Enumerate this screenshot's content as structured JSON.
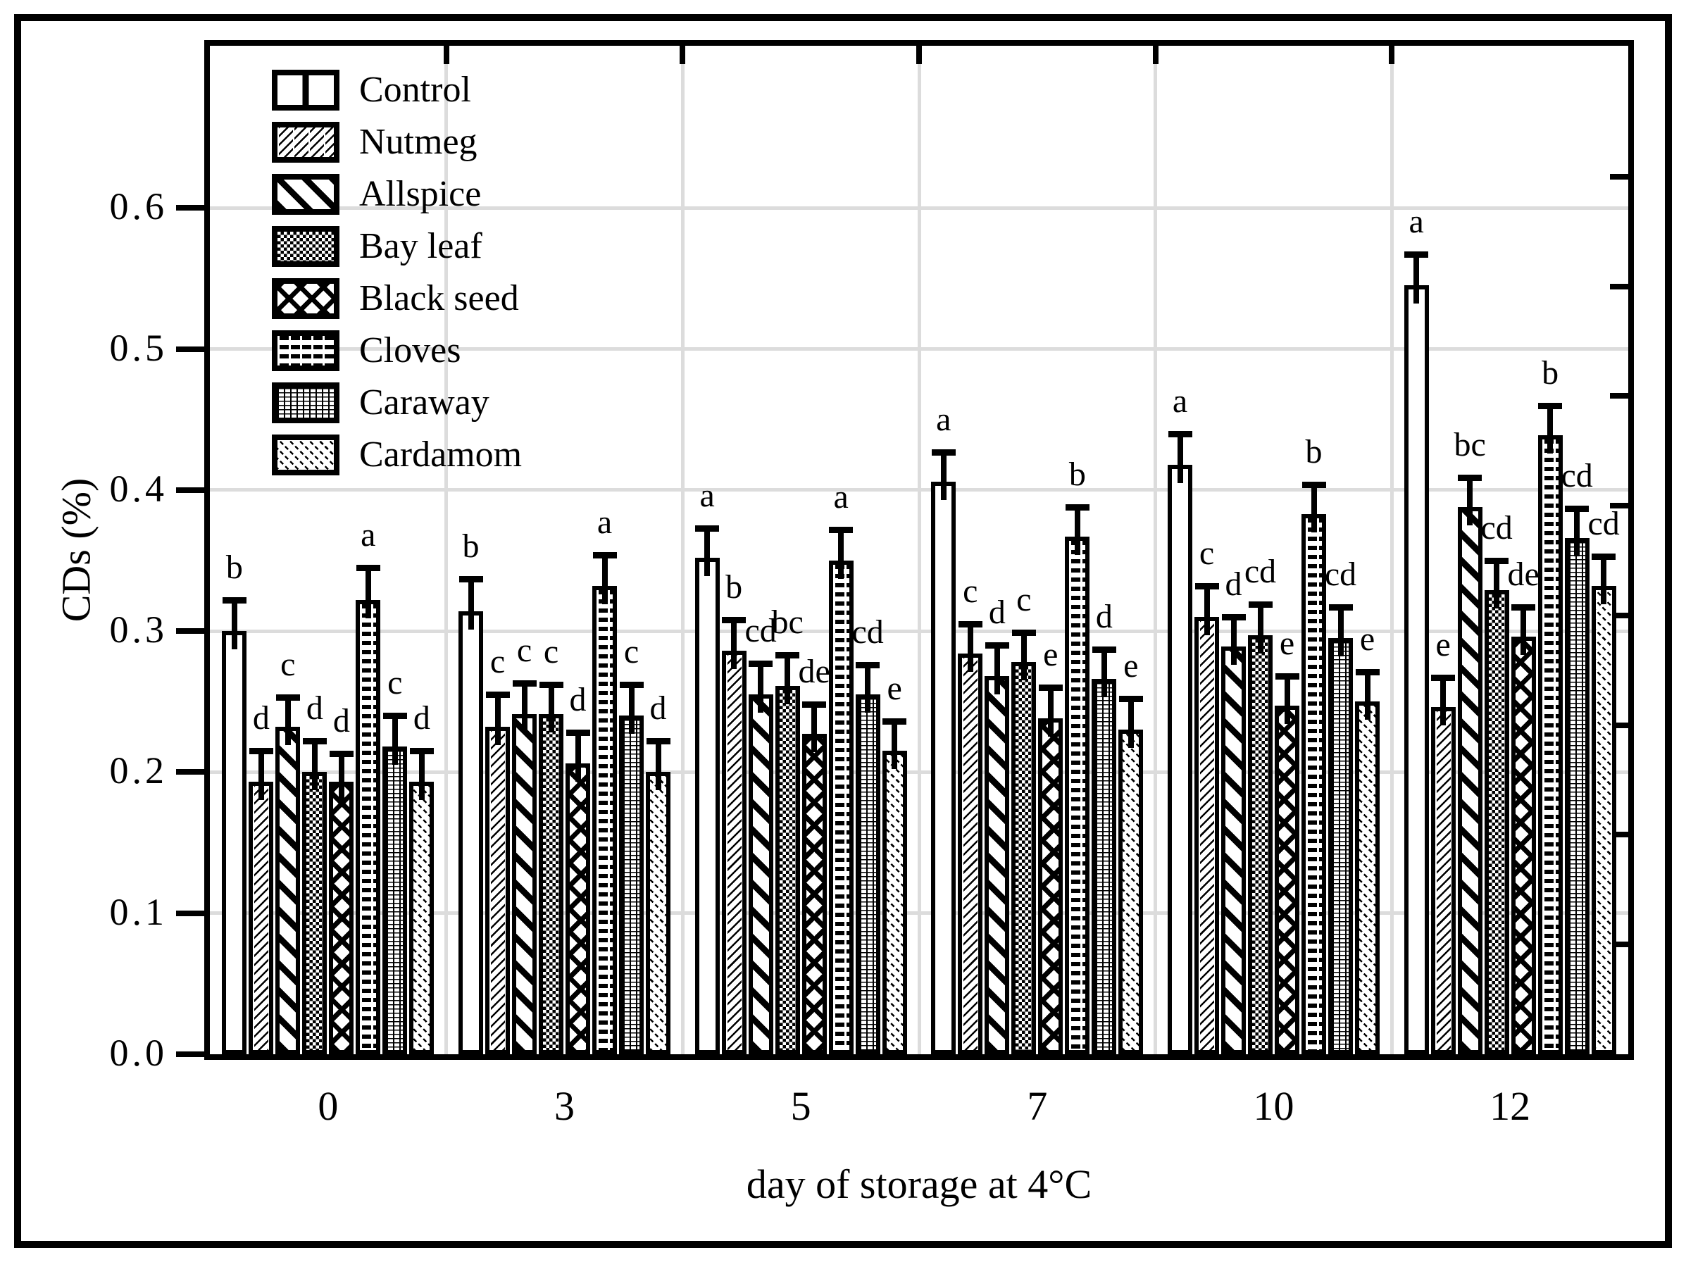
{
  "figure_kind": "grouped-bar-chart-with-error-bars",
  "colors": {
    "foreground": "#000000",
    "background": "#ffffff",
    "gridline": "#dcdcdc"
  },
  "y_axis": {
    "title": "CDs (%)",
    "tick_labels": [
      "0.0",
      "0.1",
      "0.2",
      "0.3",
      "0.4",
      "0.5",
      "0.6"
    ],
    "tick_values": [
      0.0,
      0.1,
      0.2,
      0.3,
      0.4,
      0.5,
      0.6
    ]
  },
  "x_axis": {
    "title": "day of storage at 4°C",
    "tick_labels": [
      "0",
      "3",
      "5",
      "7",
      "10",
      "12"
    ]
  },
  "legend": {
    "position": "top-left-inside",
    "items": [
      {
        "label": "Control",
        "pattern": "control"
      },
      {
        "label": "Nutmeg",
        "pattern": "nutmeg"
      },
      {
        "label": "Allspice",
        "pattern": "allspice"
      },
      {
        "label": "Bay leaf",
        "pattern": "bayleaf"
      },
      {
        "label": "Black seed",
        "pattern": "blackseed"
      },
      {
        "label": "Cloves",
        "pattern": "cloves"
      },
      {
        "label": "Caraway",
        "pattern": "caraway"
      },
      {
        "label": "Cardamom",
        "pattern": "cardamom"
      }
    ]
  },
  "chart_data": {
    "type": "bar",
    "title": "",
    "xlabel": "day of storage at 4°C",
    "ylabel": "CDs (%)",
    "ylim": [
      0,
      0.715
    ],
    "grid": true,
    "legend_position": "upper left",
    "categories": [
      "0",
      "3",
      "5",
      "7",
      "10",
      "12"
    ],
    "series": [
      {
        "name": "Control",
        "pattern": "control",
        "values": [
          0.3,
          0.314,
          0.352,
          0.406,
          0.418,
          0.545
        ],
        "errors": [
          0.022,
          0.023,
          0.021,
          0.021,
          0.022,
          0.022
        ],
        "letters": [
          "b",
          "b",
          "a",
          "a",
          "a",
          "a"
        ]
      },
      {
        "name": "Nutmeg",
        "pattern": "nutmeg",
        "values": [
          0.193,
          0.232,
          0.286,
          0.284,
          0.31,
          0.246
        ],
        "errors": [
          0.022,
          0.023,
          0.022,
          0.021,
          0.022,
          0.021
        ],
        "letters": [
          "d",
          "c",
          "b",
          "c",
          "c",
          "e"
        ]
      },
      {
        "name": "Allspice",
        "pattern": "allspice",
        "values": [
          0.232,
          0.241,
          0.255,
          0.268,
          0.289,
          0.388
        ],
        "errors": [
          0.021,
          0.022,
          0.022,
          0.022,
          0.021,
          0.021
        ],
        "letters": [
          "c",
          "c",
          "cd",
          "d",
          "d",
          "bc"
        ]
      },
      {
        "name": "Bay leaf",
        "pattern": "bayleaf",
        "values": [
          0.2,
          0.241,
          0.261,
          0.278,
          0.297,
          0.329
        ],
        "errors": [
          0.022,
          0.021,
          0.022,
          0.021,
          0.022,
          0.021
        ],
        "letters": [
          "d",
          "c",
          "bc",
          "c",
          "cd",
          "cd"
        ]
      },
      {
        "name": "Black seed",
        "pattern": "blackseed",
        "values": [
          0.193,
          0.206,
          0.227,
          0.238,
          0.247,
          0.296
        ],
        "errors": [
          0.02,
          0.022,
          0.021,
          0.022,
          0.021,
          0.021
        ],
        "letters": [
          "d",
          "d",
          "de",
          "e",
          "e",
          "de"
        ]
      },
      {
        "name": "Cloves",
        "pattern": "cloves",
        "values": [
          0.322,
          0.332,
          0.35,
          0.367,
          0.383,
          0.439
        ],
        "errors": [
          0.023,
          0.022,
          0.022,
          0.021,
          0.021,
          0.021
        ],
        "letters": [
          "a",
          "a",
          "a",
          "b",
          "b",
          "b"
        ]
      },
      {
        "name": "Caraway",
        "pattern": "caraway",
        "values": [
          0.218,
          0.24,
          0.255,
          0.266,
          0.295,
          0.366
        ],
        "errors": [
          0.022,
          0.022,
          0.021,
          0.021,
          0.022,
          0.021
        ],
        "letters": [
          "c",
          "c",
          "cd",
          "d",
          "cd",
          "cd"
        ]
      },
      {
        "name": "Cardamom",
        "pattern": "cardamom",
        "values": [
          0.193,
          0.2,
          0.215,
          0.23,
          0.25,
          0.332
        ],
        "errors": [
          0.022,
          0.022,
          0.021,
          0.022,
          0.021,
          0.021
        ],
        "letters": [
          "d",
          "d",
          "e",
          "e",
          "e",
          "cd"
        ]
      }
    ],
    "right_axis_minor_tick_values": [
      0.078,
      0.156,
      0.233,
      0.311,
      0.389,
      0.467,
      0.544,
      0.622
    ]
  }
}
